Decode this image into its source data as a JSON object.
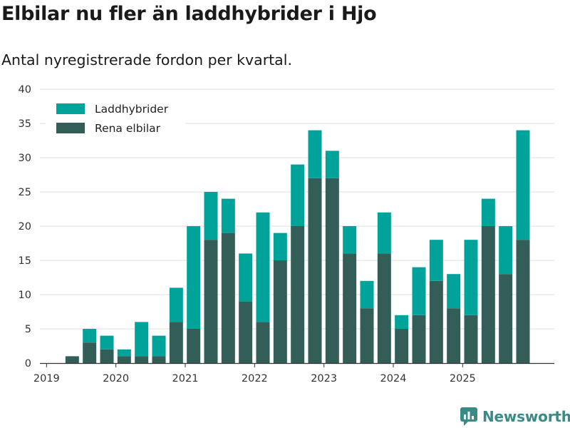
{
  "title": "Elbilar nu fler än laddhybrider i Hjo",
  "subtitle": "Antal nyregistrerade fordon per kvartal.",
  "brand": {
    "name": "Newsworthy",
    "icon": "newsworthy-logo-icon"
  },
  "colors": {
    "laddhybrider": "#00a39a",
    "elbilar": "#335e58",
    "grid": "#dcdcdc",
    "axis": "#333333",
    "brand": "#3a8a86"
  },
  "chart_data": {
    "type": "bar",
    "stacked": true,
    "title": "Elbilar nu fler än laddhybrider i Hjo",
    "subtitle": "Antal nyregistrerade fordon per kvartal.",
    "xlabel": "",
    "ylabel": "",
    "ylim": [
      0,
      40
    ],
    "yticks": [
      0,
      5,
      10,
      15,
      20,
      25,
      30,
      35,
      40
    ],
    "xticks": [
      {
        "label": "2019",
        "index": 0
      },
      {
        "label": "2020",
        "index": 4
      },
      {
        "label": "2021",
        "index": 8
      },
      {
        "label": "2022",
        "index": 12
      },
      {
        "label": "2023",
        "index": 16
      },
      {
        "label": "2024",
        "index": 20
      },
      {
        "label": "2025",
        "index": 24
      }
    ],
    "categories": [
      "2019Q1",
      "2019Q2",
      "2019Q3",
      "2019Q4",
      "2020Q1",
      "2020Q2",
      "2020Q3",
      "2020Q4",
      "2021Q1",
      "2021Q2",
      "2021Q3",
      "2021Q4",
      "2022Q1",
      "2022Q2",
      "2022Q3",
      "2022Q4",
      "2023Q1",
      "2023Q2",
      "2023Q3",
      "2023Q4",
      "2024Q1",
      "2024Q2",
      "2024Q3",
      "2024Q4",
      "2025Q1",
      "2025Q2",
      "2025Q3",
      "2025Q4"
    ],
    "legend_position": "top-left",
    "series": [
      {
        "name": "Rena elbilar",
        "color": "#335e58",
        "values": [
          0,
          1,
          3,
          2,
          1,
          1,
          1,
          6,
          5,
          18,
          19,
          9,
          6,
          15,
          20,
          27,
          27,
          16,
          8,
          16,
          5,
          7,
          12,
          8,
          7,
          20,
          13,
          18
        ]
      },
      {
        "name": "Laddhybrider",
        "color": "#00a39a",
        "values": [
          0,
          0,
          2,
          2,
          1,
          5,
          3,
          5,
          15,
          7,
          5,
          7,
          16,
          4,
          9,
          7,
          4,
          4,
          4,
          6,
          2,
          7,
          6,
          5,
          11,
          4,
          7,
          16
        ]
      }
    ],
    "legend": [
      "Laddhybrider",
      "Rena elbilar"
    ]
  }
}
